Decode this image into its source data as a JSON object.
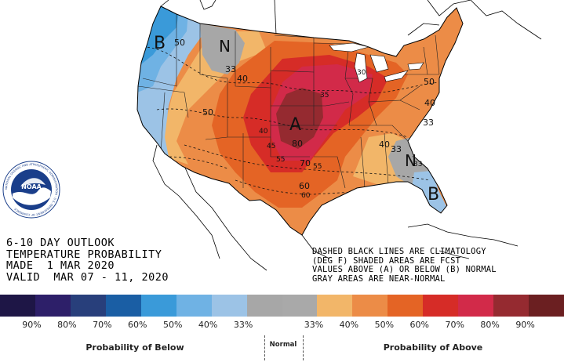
{
  "title": {
    "line1": "6-10 DAY OUTLOOK",
    "line2": "TEMPERATURE PROBABILITY",
    "line3": "MADE  1 MAR 2020",
    "line4": "VALID  MAR 07 - 11, 2020"
  },
  "notes": {
    "line1": "DASHED BLACK LINES ARE CLIMATOLOGY",
    "line2": "(DEG F) SHADED AREAS ARE FCST",
    "line3": "VALUES ABOVE (A) OR BELOW (B) NORMAL",
    "line4": "GRAY AREAS ARE NEAR-NORMAL"
  },
  "legend": {
    "colors": [
      "#1e1646",
      "#2d1f69",
      "#283f7b",
      "#1a5ea4",
      "#3a9ad9",
      "#6fb2e4",
      "#9cc3e6",
      "#a7a7a7",
      "#a9a9a9",
      "#f2b669",
      "#ec8c47",
      "#e46425",
      "#d62c27",
      "#d22a49",
      "#952a30",
      "#6b1f21"
    ],
    "ticks": [
      "90%",
      "80%",
      "70%",
      "60%",
      "50%",
      "40%",
      "33%",
      "33%",
      "40%",
      "50%",
      "60%",
      "70%",
      "80%",
      "90%"
    ],
    "below_label": "Probability of Below",
    "normal_label": "Normal",
    "above_label": "Probability of Above"
  },
  "map": {
    "category_letters": [
      "B",
      "N",
      "A",
      "N",
      "B"
    ],
    "contour_labels": [
      "50",
      "33",
      "40",
      "50",
      "40",
      "45",
      "80",
      "55",
      "70",
      "55",
      "60",
      "60",
      "40",
      "33",
      "50",
      "40",
      "33",
      "33",
      "35",
      "30"
    ],
    "colors": {
      "below_40": "#6fb2e4",
      "below_50": "#3a9ad9",
      "below_60": "#1a5ea4",
      "normal": "#a7a7a7",
      "above_40": "#f2b669",
      "above_50": "#ec8c47",
      "above_60": "#e46425",
      "above_70": "#d62c27",
      "above_80": "#d22a49",
      "above_90": "#952a30"
    }
  },
  "logo": {
    "name": "NOAA",
    "ring_text": "NATIONAL OCEANIC AND ATMOSPHERIC ADMINISTRATION · U.S. DEPARTMENT OF COMMERCE"
  }
}
